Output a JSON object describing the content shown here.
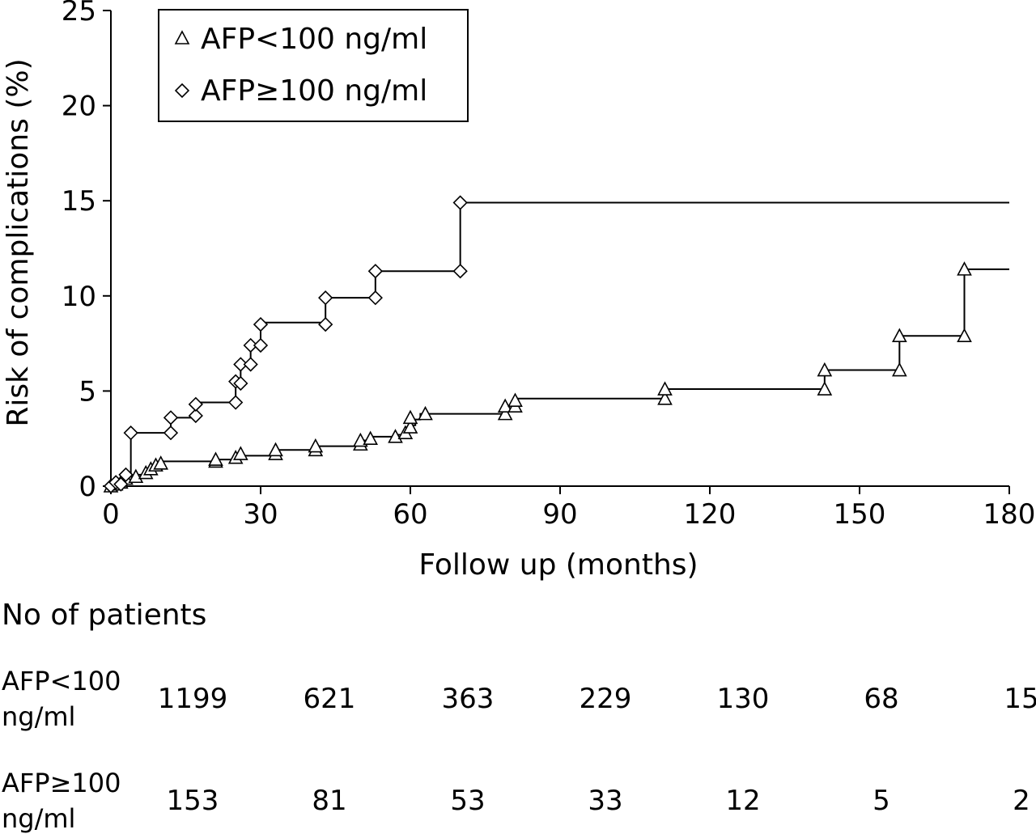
{
  "chart_data": {
    "type": "line",
    "step": true,
    "xlabel": "Follow up (months)",
    "ylabel": "Risk of complications (%)",
    "xlim": [
      0,
      180
    ],
    "ylim": [
      0,
      25
    ],
    "xticks": [
      0,
      30,
      60,
      90,
      120,
      150,
      180
    ],
    "yticks": [
      0,
      5,
      10,
      15,
      20,
      25
    ],
    "grid": false,
    "legend_position": "top-left",
    "series": [
      {
        "name": "AFP<100 ng/ml",
        "marker": "triangle",
        "steps": [
          [
            0,
            0
          ],
          [
            1,
            0.1
          ],
          [
            2,
            0.3
          ],
          [
            3,
            0.5
          ],
          [
            5,
            0.6
          ],
          [
            7,
            0.8
          ],
          [
            8,
            1.0
          ],
          [
            9,
            1.1
          ],
          [
            10,
            1.3
          ],
          [
            21,
            1.4
          ],
          [
            25,
            1.6
          ],
          [
            33,
            1.9
          ],
          [
            41,
            2.1
          ],
          [
            50,
            2.4
          ],
          [
            52,
            2.6
          ],
          [
            57,
            2.7
          ],
          [
            59,
            2.9
          ],
          [
            60,
            3.2
          ],
          [
            61,
            3.5
          ],
          [
            62,
            3.8
          ],
          [
            79,
            4.1
          ],
          [
            81,
            4.6
          ],
          [
            111,
            5.1
          ],
          [
            143,
            6.1
          ],
          [
            158,
            7.9
          ],
          [
            171,
            11.4
          ]
        ],
        "end_x": 180,
        "markers": [
          [
            0,
            0
          ],
          [
            1,
            0.1
          ],
          [
            2,
            0.2
          ],
          [
            3,
            0.4
          ],
          [
            5,
            0.5
          ],
          [
            7,
            0.7
          ],
          [
            8,
            0.9
          ],
          [
            9,
            1.1
          ],
          [
            10,
            1.2
          ],
          [
            21,
            1.3
          ],
          [
            21,
            1.4
          ],
          [
            25,
            1.5
          ],
          [
            26,
            1.7
          ],
          [
            33,
            1.7
          ],
          [
            33,
            1.9
          ],
          [
            41,
            1.9
          ],
          [
            41,
            2.1
          ],
          [
            50,
            2.2
          ],
          [
            50,
            2.4
          ],
          [
            52,
            2.5
          ],
          [
            57,
            2.6
          ],
          [
            59,
            2.8
          ],
          [
            60,
            3.1
          ],
          [
            60,
            3.6
          ],
          [
            63,
            3.8
          ],
          [
            79,
            3.8
          ],
          [
            79,
            4.2
          ],
          [
            81,
            4.2
          ],
          [
            81,
            4.5
          ],
          [
            111,
            4.6
          ],
          [
            111,
            5.1
          ],
          [
            143,
            5.1
          ],
          [
            143,
            6.1
          ],
          [
            158,
            6.1
          ],
          [
            158,
            7.9
          ],
          [
            171,
            7.9
          ],
          [
            171,
            11.4
          ]
        ]
      },
      {
        "name": "AFP≥100 ng/ml",
        "marker": "diamond",
        "steps": [
          [
            0,
            0
          ],
          [
            1,
            0.1
          ],
          [
            2,
            0.3
          ],
          [
            3,
            0.5
          ],
          [
            4,
            2.8
          ],
          [
            12,
            3.6
          ],
          [
            17,
            4.4
          ],
          [
            25,
            5.4
          ],
          [
            26,
            6.4
          ],
          [
            28,
            7.4
          ],
          [
            30,
            8.6
          ],
          [
            43,
            9.9
          ],
          [
            53,
            11.3
          ],
          [
            70,
            14.9
          ]
        ],
        "end_x": 180,
        "markers": [
          [
            0,
            0
          ],
          [
            1,
            0.2
          ],
          [
            2,
            0.1
          ],
          [
            3,
            0.6
          ],
          [
            4,
            2.8
          ],
          [
            12,
            2.8
          ],
          [
            12,
            3.6
          ],
          [
            17,
            3.7
          ],
          [
            17,
            4.3
          ],
          [
            25,
            4.4
          ],
          [
            25,
            5.5
          ],
          [
            26,
            5.4
          ],
          [
            26,
            6.4
          ],
          [
            28,
            6.4
          ],
          [
            28,
            7.4
          ],
          [
            30,
            7.4
          ],
          [
            30,
            8.5
          ],
          [
            43,
            8.5
          ],
          [
            43,
            9.9
          ],
          [
            53,
            9.9
          ],
          [
            53,
            11.3
          ],
          [
            70,
            11.3
          ],
          [
            70,
            14.9
          ]
        ]
      }
    ]
  },
  "risk_table": {
    "title": "No of patients",
    "rows": [
      {
        "label_line1": "AFP<100",
        "label_line2": "ng/ml",
        "values": [
          "1199",
          "621",
          "363",
          "229",
          "130",
          "68",
          "15"
        ]
      },
      {
        "label_line1": "AFP≥100",
        "label_line2": "ng/ml",
        "values": [
          "153",
          "81",
          "53",
          "33",
          "12",
          "5",
          "2"
        ]
      }
    ]
  }
}
